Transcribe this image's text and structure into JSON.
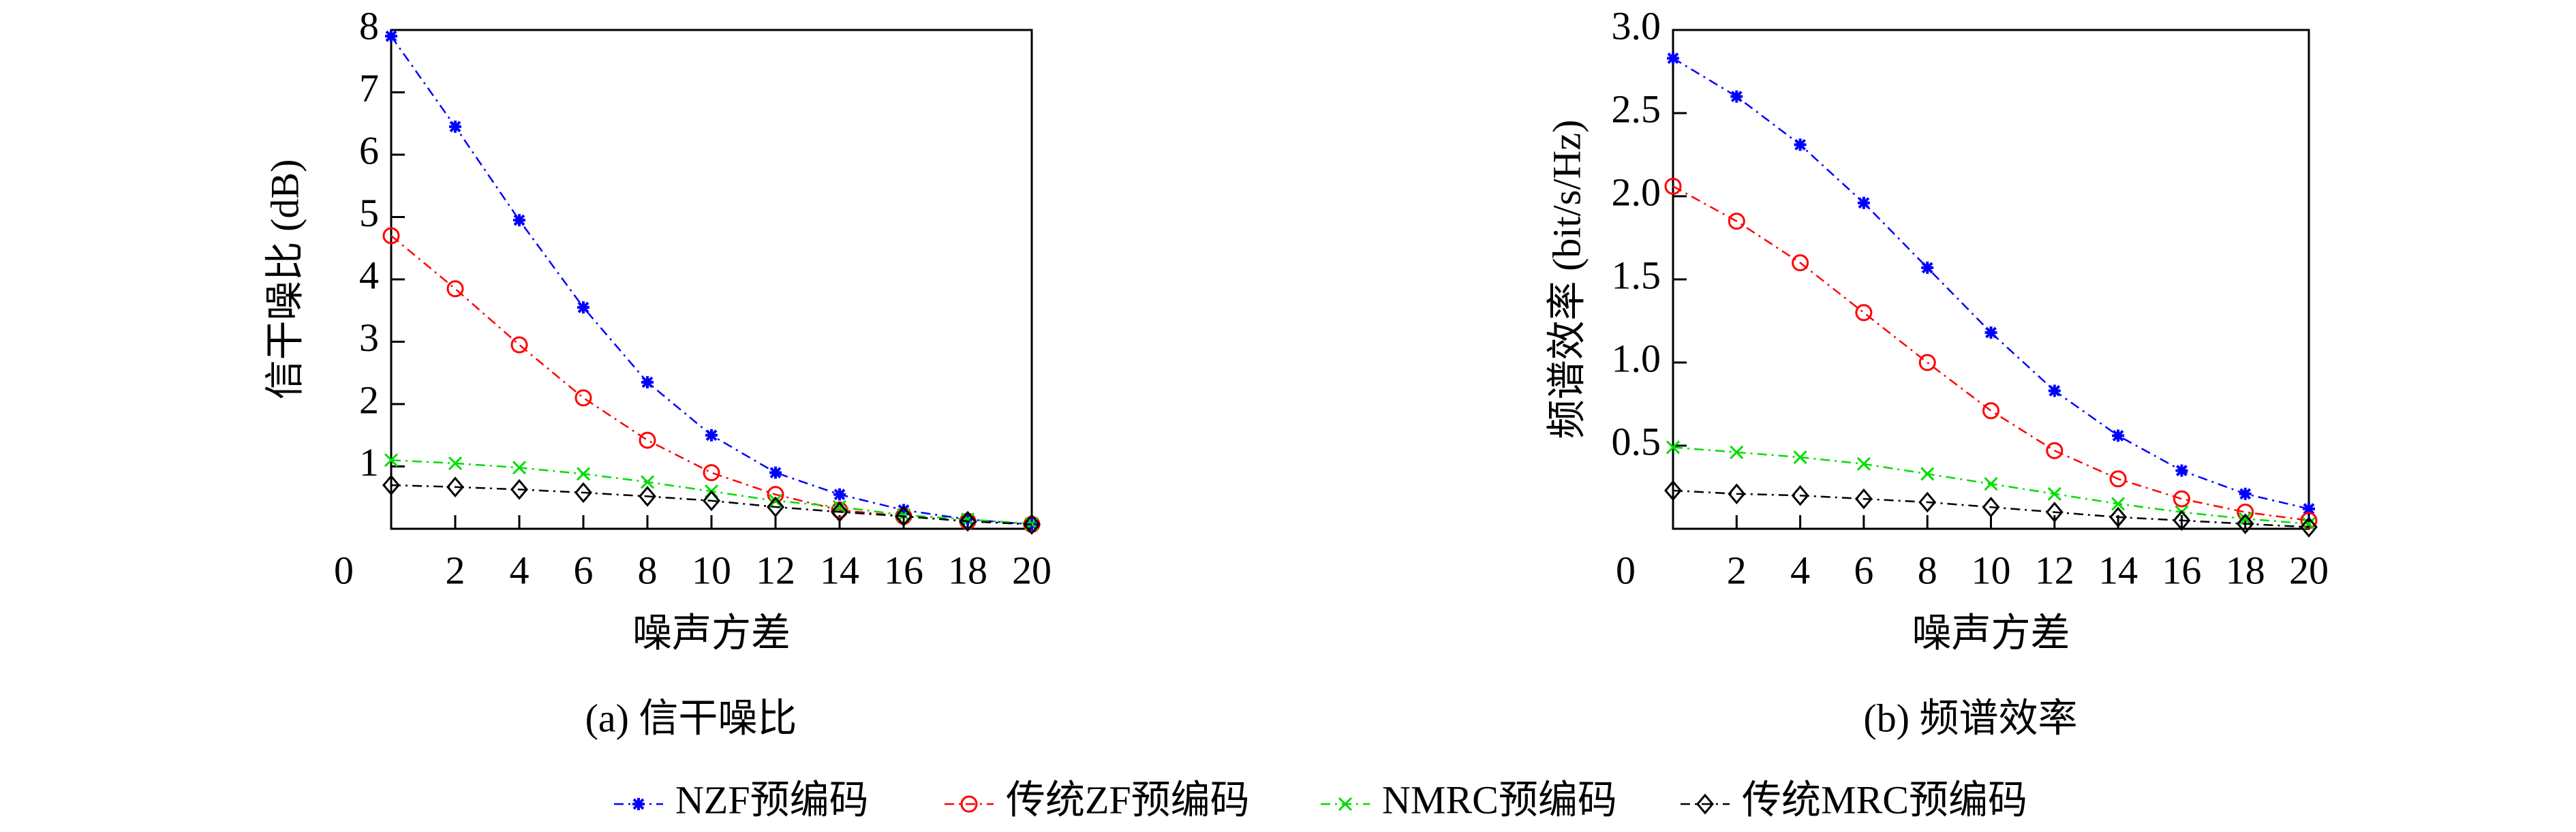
{
  "chart_data": [
    {
      "type": "line",
      "title": "(a) 信干噪比",
      "x_label": "噪声方差",
      "y_label": "信干噪比 (dB)",
      "x": [
        0,
        2,
        4,
        6,
        8,
        10,
        12,
        14,
        16,
        18,
        20
      ],
      "xlim": [
        0,
        20
      ],
      "xticks": [
        2,
        4,
        6,
        8,
        10,
        12,
        14,
        16,
        18,
        20
      ],
      "ylim": [
        0,
        8
      ],
      "yticks": [
        0,
        1,
        2,
        3,
        4,
        5,
        6,
        7,
        8
      ],
      "legend": "bottom",
      "series": [
        {
          "name": "NZF预编码",
          "color": "#0000ff",
          "marker": "star",
          "values": [
            7.9,
            6.45,
            4.95,
            3.55,
            2.35,
            1.5,
            0.9,
            0.55,
            0.3,
            0.15,
            0.07
          ]
        },
        {
          "name": "传统ZF预编码",
          "color": "#ff0000",
          "marker": "circle",
          "values": [
            4.7,
            3.85,
            2.95,
            2.1,
            1.42,
            0.9,
            0.55,
            0.3,
            0.2,
            0.12,
            0.07
          ]
        },
        {
          "name": "NMRC预编码",
          "color": "#00dd00",
          "marker": "cross",
          "values": [
            1.1,
            1.05,
            0.98,
            0.88,
            0.75,
            0.6,
            0.45,
            0.35,
            0.22,
            0.15,
            0.08
          ]
        },
        {
          "name": "传统MRC预编码",
          "color": "#000000",
          "marker": "diamond",
          "values": [
            0.7,
            0.67,
            0.63,
            0.58,
            0.52,
            0.45,
            0.35,
            0.27,
            0.2,
            0.12,
            0.07
          ]
        }
      ]
    },
    {
      "type": "line",
      "title": "(b) 频谱效率",
      "x_label": "噪声方差",
      "y_label": "频谱效率 (bit/s/Hz)",
      "x": [
        0,
        2,
        4,
        6,
        8,
        10,
        12,
        14,
        16,
        18,
        20
      ],
      "xlim": [
        0,
        20
      ],
      "xticks": [
        2,
        4,
        6,
        8,
        10,
        12,
        14,
        16,
        18,
        20
      ],
      "ylim": [
        0,
        3
      ],
      "yticks": [
        0,
        0.5,
        {
          "value": 1,
          "label": "1.0"
        },
        1.5,
        {
          "value": 2,
          "label": "2.0"
        },
        2.5,
        {
          "value": 3,
          "label": "3.0"
        }
      ],
      "series": [
        {
          "name": "NZF预编码",
          "color": "#0000ff",
          "marker": "star",
          "values": [
            2.83,
            2.6,
            2.31,
            1.96,
            1.57,
            1.18,
            0.83,
            0.56,
            0.35,
            0.21,
            0.12
          ]
        },
        {
          "name": "传统ZF预编码",
          "color": "#ff0000",
          "marker": "circle",
          "values": [
            2.06,
            1.85,
            1.6,
            1.3,
            1.0,
            0.71,
            0.47,
            0.3,
            0.18,
            0.1,
            0.05
          ]
        },
        {
          "name": "NMRC预编码",
          "color": "#00dd00",
          "marker": "cross",
          "values": [
            0.49,
            0.46,
            0.43,
            0.39,
            0.33,
            0.27,
            0.21,
            0.15,
            0.1,
            0.06,
            0.03
          ]
        },
        {
          "name": "传统MRC预编码",
          "color": "#000000",
          "marker": "diamond",
          "values": [
            0.23,
            0.21,
            0.2,
            0.18,
            0.16,
            0.13,
            0.1,
            0.07,
            0.05,
            0.03,
            0.01
          ]
        }
      ]
    }
  ]
}
